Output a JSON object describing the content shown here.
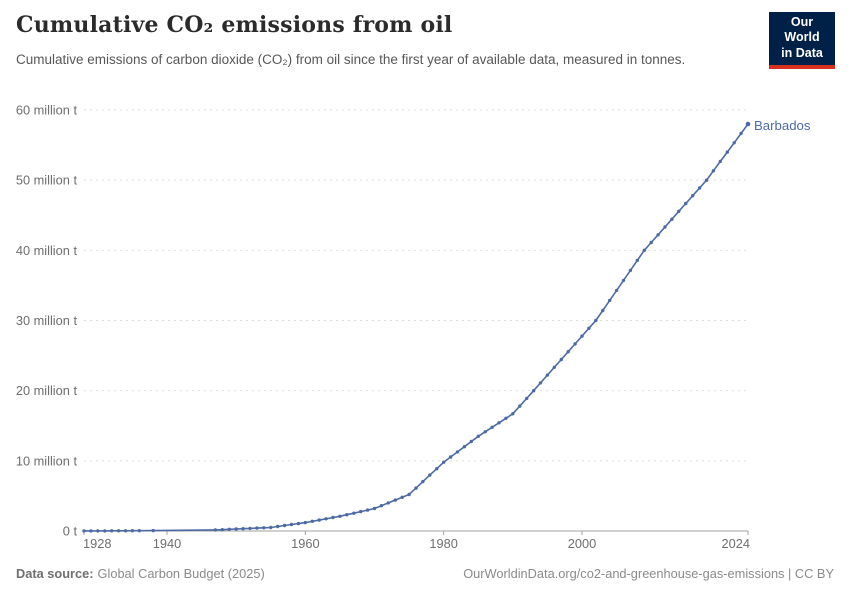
{
  "header": {
    "title": "Cumulative CO₂ emissions from oil",
    "subtitle": "Cumulative emissions of carbon dioxide (CO₂) from oil since the first year of available data, measured in tonnes.",
    "logo": {
      "line1": "Our World",
      "line2": "in Data"
    }
  },
  "colors": {
    "series_blue": "#4d6aa5",
    "logo_background": "#002147",
    "logo_accent_red": "#d8301f",
    "gridline": "#dedede",
    "axis": "#a0a0a0",
    "tick_text": "#6e6e6e"
  },
  "chart_data": {
    "type": "line",
    "title": "Cumulative CO₂ emissions from oil",
    "xlabel": "",
    "ylabel": "",
    "unit": "tonnes (millions)",
    "xlim": [
      1928,
      2024
    ],
    "ylim": [
      0,
      60
    ],
    "grid": "horizontal-dashed",
    "legend_position": "end-of-line-label",
    "x_ticks": [
      1928,
      1940,
      1960,
      1980,
      2000,
      2024
    ],
    "y_ticks": [
      {
        "value": 0,
        "label": "0 t"
      },
      {
        "value": 10,
        "label": "10 million t"
      },
      {
        "value": 20,
        "label": "20 million t"
      },
      {
        "value": 30,
        "label": "30 million t"
      },
      {
        "value": 40,
        "label": "40 million t"
      },
      {
        "value": 50,
        "label": "50 million t"
      },
      {
        "value": 60,
        "label": "60 million t"
      }
    ],
    "series": [
      {
        "name": "Barbados",
        "color": "#4d6aa5",
        "value_unit": "million tonnes",
        "points": [
          [
            1928,
            0.01
          ],
          [
            1929,
            0.01
          ],
          [
            1930,
            0.02
          ],
          [
            1931,
            0.02
          ],
          [
            1932,
            0.03
          ],
          [
            1933,
            0.03
          ],
          [
            1934,
            0.03
          ],
          [
            1935,
            0.04
          ],
          [
            1936,
            0.04
          ],
          [
            1938,
            0.05
          ],
          [
            1947,
            0.15
          ],
          [
            1948,
            0.19
          ],
          [
            1949,
            0.24
          ],
          [
            1950,
            0.28
          ],
          [
            1951,
            0.33
          ],
          [
            1952,
            0.37
          ],
          [
            1953,
            0.41
          ],
          [
            1954,
            0.46
          ],
          [
            1955,
            0.5
          ],
          [
            1956,
            0.64
          ],
          [
            1957,
            0.78
          ],
          [
            1958,
            0.92
          ],
          [
            1959,
            1.06
          ],
          [
            1960,
            1.2
          ],
          [
            1961,
            1.38
          ],
          [
            1962,
            1.56
          ],
          [
            1963,
            1.74
          ],
          [
            1964,
            1.92
          ],
          [
            1965,
            2.1
          ],
          [
            1966,
            2.32
          ],
          [
            1967,
            2.54
          ],
          [
            1968,
            2.76
          ],
          [
            1969,
            2.98
          ],
          [
            1970,
            3.2
          ],
          [
            1971,
            3.6
          ],
          [
            1972,
            4.0
          ],
          [
            1973,
            4.4
          ],
          [
            1974,
            4.8
          ],
          [
            1975,
            5.2
          ],
          [
            1976,
            6.12
          ],
          [
            1977,
            7.04
          ],
          [
            1978,
            7.96
          ],
          [
            1979,
            8.88
          ],
          [
            1980,
            9.8
          ],
          [
            1981,
            10.54
          ],
          [
            1982,
            11.28
          ],
          [
            1983,
            12.02
          ],
          [
            1984,
            12.76
          ],
          [
            1985,
            13.5
          ],
          [
            1986,
            14.14
          ],
          [
            1987,
            14.78
          ],
          [
            1988,
            15.42
          ],
          [
            1989,
            16.06
          ],
          [
            1990,
            16.7
          ],
          [
            1991,
            17.8
          ],
          [
            1992,
            18.9
          ],
          [
            1993,
            20.0
          ],
          [
            1994,
            21.11
          ],
          [
            1995,
            22.22
          ],
          [
            1996,
            23.33
          ],
          [
            1997,
            24.44
          ],
          [
            1998,
            25.56
          ],
          [
            1999,
            26.67
          ],
          [
            2000,
            27.78
          ],
          [
            2001,
            28.89
          ],
          [
            2002,
            30.0
          ],
          [
            2003,
            31.43
          ],
          [
            2004,
            32.86
          ],
          [
            2005,
            34.29
          ],
          [
            2006,
            35.71
          ],
          [
            2007,
            37.14
          ],
          [
            2008,
            38.57
          ],
          [
            2009,
            40.0
          ],
          [
            2010,
            41.11
          ],
          [
            2011,
            42.22
          ],
          [
            2012,
            43.33
          ],
          [
            2013,
            44.44
          ],
          [
            2014,
            45.56
          ],
          [
            2015,
            46.67
          ],
          [
            2016,
            47.78
          ],
          [
            2017,
            48.89
          ],
          [
            2018,
            50.0
          ],
          [
            2019,
            51.33
          ],
          [
            2020,
            52.67
          ],
          [
            2021,
            54.0
          ],
          [
            2022,
            55.33
          ],
          [
            2023,
            56.67
          ],
          [
            2024,
            58.0
          ]
        ]
      }
    ]
  },
  "footer": {
    "source_label": "Data source:",
    "source": "Global Carbon Budget (2025)",
    "link": "OurWorldinData.org/co2-and-greenhouse-gas-emissions | CC BY"
  }
}
